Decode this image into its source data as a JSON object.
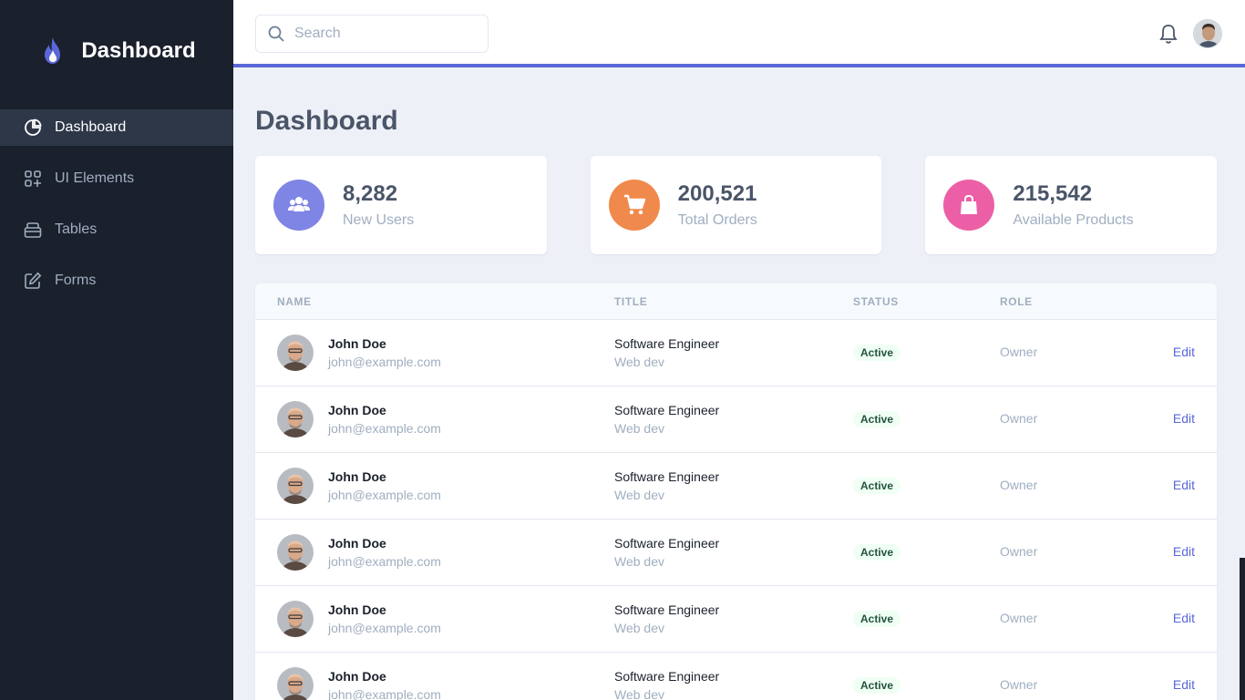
{
  "app": {
    "brand_title": "Dashboard"
  },
  "sidebar": {
    "items": [
      {
        "label": "Dashboard",
        "icon": "pie-chart-icon",
        "active": true
      },
      {
        "label": "UI Elements",
        "icon": "grid-plus-icon",
        "active": false
      },
      {
        "label": "Tables",
        "icon": "table-icon",
        "active": false
      },
      {
        "label": "Forms",
        "icon": "edit-icon",
        "active": false
      }
    ]
  },
  "header": {
    "search_placeholder": "Search",
    "accent_color": "#5a67d8"
  },
  "main": {
    "page_title": "Dashboard"
  },
  "stats": [
    {
      "value": "8,282",
      "label": "New Users",
      "icon": "users-icon",
      "color": "#7f85e4"
    },
    {
      "value": "200,521",
      "label": "Total Orders",
      "icon": "cart-icon",
      "color": "#f0894c"
    },
    {
      "value": "215,542",
      "label": "Available Products",
      "icon": "shopping-bag-icon",
      "color": "#ec5fa6"
    }
  ],
  "table": {
    "headers": [
      "NAME",
      "TITLE",
      "STATUS",
      "ROLE"
    ],
    "rows": [
      {
        "name": "John Doe",
        "email": "john@example.com",
        "title": "Software Engineer",
        "dept": "Web dev",
        "status": "Active",
        "role": "Owner",
        "action": "Edit"
      },
      {
        "name": "John Doe",
        "email": "john@example.com",
        "title": "Software Engineer",
        "dept": "Web dev",
        "status": "Active",
        "role": "Owner",
        "action": "Edit"
      },
      {
        "name": "John Doe",
        "email": "john@example.com",
        "title": "Software Engineer",
        "dept": "Web dev",
        "status": "Active",
        "role": "Owner",
        "action": "Edit"
      },
      {
        "name": "John Doe",
        "email": "john@example.com",
        "title": "Software Engineer",
        "dept": "Web dev",
        "status": "Active",
        "role": "Owner",
        "action": "Edit"
      },
      {
        "name": "John Doe",
        "email": "john@example.com",
        "title": "Software Engineer",
        "dept": "Web dev",
        "status": "Active",
        "role": "Owner",
        "action": "Edit"
      },
      {
        "name": "John Doe",
        "email": "john@example.com",
        "title": "Software Engineer",
        "dept": "Web dev",
        "status": "Active",
        "role": "Owner",
        "action": "Edit"
      }
    ]
  }
}
